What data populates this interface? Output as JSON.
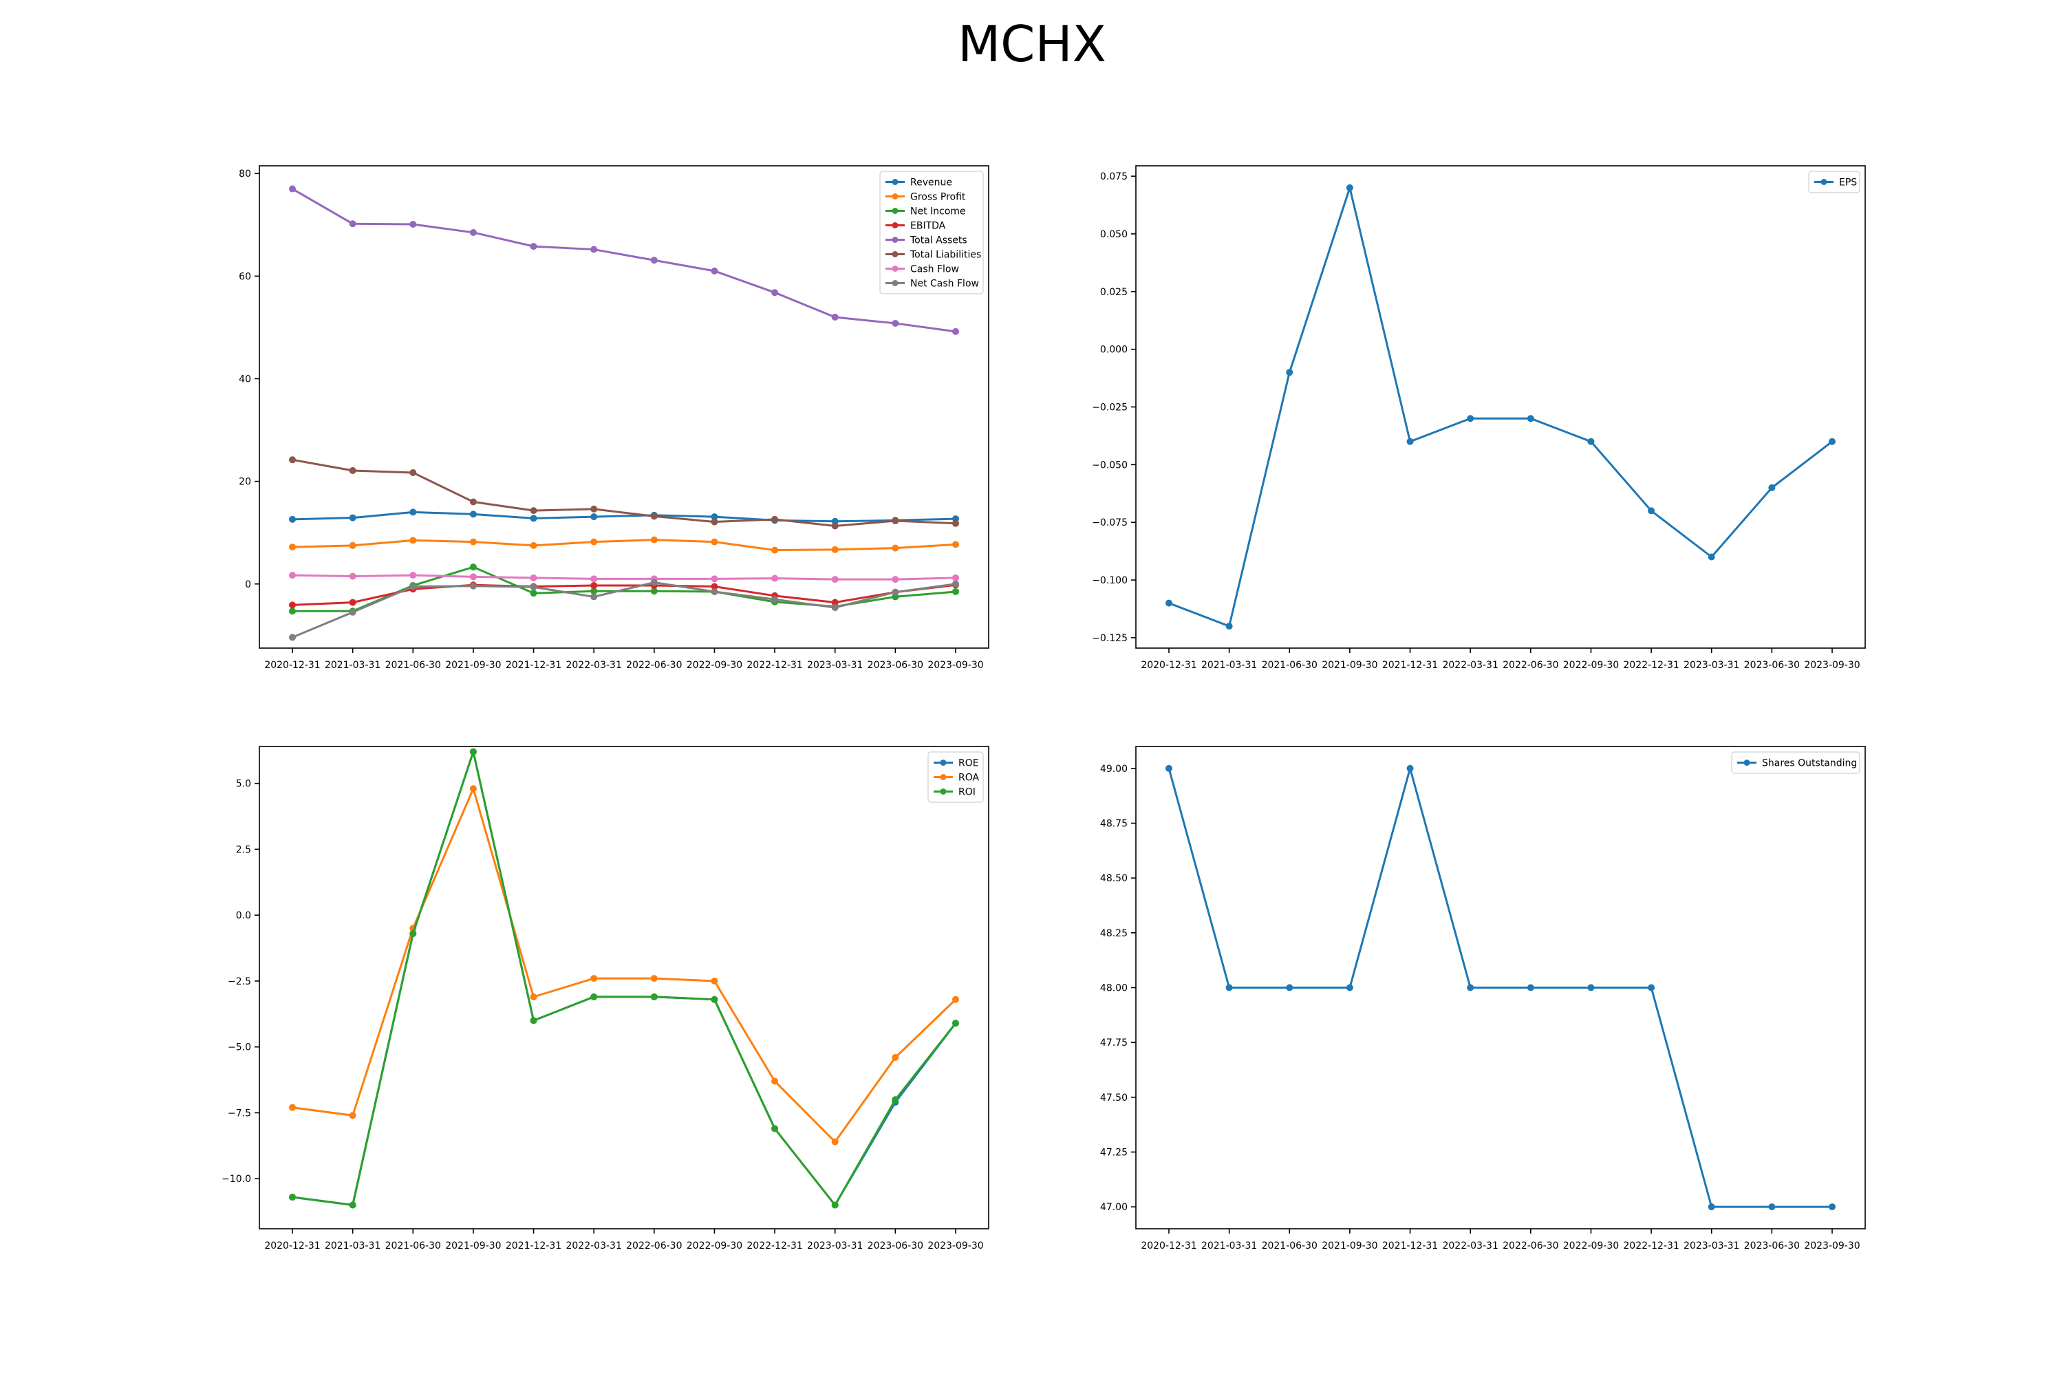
{
  "title": "MCHX",
  "colors": {
    "blue": "#1f77b4",
    "orange": "#ff7f0e",
    "green": "#2ca02c",
    "red": "#d62728",
    "purple": "#9467bd",
    "brown": "#8c564b",
    "pink": "#e377c2",
    "gray": "#7f7f7f"
  },
  "chart_data": [
    {
      "type": "line",
      "title": "",
      "xlabel": "",
      "ylabel": "",
      "legend_position": "top-right",
      "ylim": [
        -12.5,
        81.5
      ],
      "yticks": [
        0,
        20,
        40,
        60,
        80
      ],
      "categories": [
        "2020-12-31",
        "2021-03-31",
        "2021-06-30",
        "2021-09-30",
        "2021-12-31",
        "2022-03-31",
        "2022-06-30",
        "2022-09-30",
        "2022-12-31",
        "2023-03-31",
        "2023-06-30",
        "2023-09-30"
      ],
      "series": [
        {
          "name": "Revenue",
          "color": "#1f77b4",
          "values": [
            12.6,
            12.9,
            14.0,
            13.6,
            12.8,
            13.1,
            13.4,
            13.1,
            12.4,
            12.2,
            12.4,
            12.7
          ]
        },
        {
          "name": "Gross Profit",
          "color": "#ff7f0e",
          "values": [
            7.2,
            7.5,
            8.5,
            8.2,
            7.5,
            8.2,
            8.6,
            8.2,
            6.6,
            6.7,
            7.0,
            7.7
          ]
        },
        {
          "name": "Net Income",
          "color": "#2ca02c",
          "values": [
            -5.3,
            -5.3,
            -0.3,
            3.3,
            -1.8,
            -1.4,
            -1.4,
            -1.5,
            -3.5,
            -4.4,
            -2.5,
            -1.5
          ]
        },
        {
          "name": "EBITDA",
          "color": "#d62728",
          "values": [
            -4.1,
            -3.6,
            -1.0,
            -0.2,
            -0.5,
            -0.3,
            -0.3,
            -0.5,
            -2.3,
            -3.6,
            -1.6,
            -0.2
          ]
        },
        {
          "name": "Total Assets",
          "color": "#9467bd",
          "values": [
            77.0,
            70.2,
            70.1,
            68.5,
            65.8,
            65.2,
            63.1,
            61.0,
            56.8,
            52.0,
            50.8,
            49.2
          ]
        },
        {
          "name": "Total Liabilities",
          "color": "#8c564b",
          "values": [
            24.2,
            22.1,
            21.7,
            16.0,
            14.3,
            14.6,
            13.2,
            12.1,
            12.6,
            11.3,
            12.3,
            11.8
          ]
        },
        {
          "name": "Cash Flow",
          "color": "#e377c2",
          "values": [
            1.7,
            1.5,
            1.7,
            1.4,
            1.2,
            1.0,
            1.0,
            1.0,
            1.1,
            0.9,
            0.9,
            1.2
          ]
        },
        {
          "name": "Net Cash Flow",
          "color": "#7f7f7f",
          "values": [
            -10.4,
            -5.5,
            -0.5,
            -0.4,
            -0.6,
            -2.5,
            0.3,
            -1.5,
            -3.0,
            -4.6,
            -1.6,
            0.0
          ]
        }
      ]
    },
    {
      "type": "line",
      "title": "",
      "xlabel": "",
      "ylabel": "",
      "legend_position": "top-right",
      "ylim": [
        -0.1295,
        0.0795
      ],
      "yticks": [
        -0.125,
        -0.1,
        -0.075,
        -0.05,
        -0.025,
        0.0,
        0.025,
        0.05,
        0.075
      ],
      "ytick_labels": [
        "−0.125",
        "−0.100",
        "−0.075",
        "−0.050",
        "−0.025",
        "0.000",
        "0.025",
        "0.050",
        "0.075"
      ],
      "categories": [
        "2020-12-31",
        "2021-03-31",
        "2021-06-30",
        "2021-09-30",
        "2021-12-31",
        "2022-03-31",
        "2022-06-30",
        "2022-09-30",
        "2022-12-31",
        "2023-03-31",
        "2023-06-30",
        "2023-09-30"
      ],
      "series": [
        {
          "name": "EPS",
          "color": "#1f77b4",
          "values": [
            -0.11,
            -0.12,
            -0.01,
            0.07,
            -0.04,
            -0.03,
            -0.03,
            -0.04,
            -0.07,
            -0.09,
            -0.06,
            -0.04
          ]
        }
      ]
    },
    {
      "type": "line",
      "title": "",
      "xlabel": "",
      "ylabel": "",
      "legend_position": "top-right",
      "ylim": [
        -11.9,
        6.4
      ],
      "yticks": [
        -10.0,
        -7.5,
        -5.0,
        -2.5,
        0.0,
        2.5,
        5.0
      ],
      "ytick_labels": [
        "−10.0",
        "−7.5",
        "−5.0",
        "−2.5",
        "0.0",
        "2.5",
        "5.0"
      ],
      "categories": [
        "2020-12-31",
        "2021-03-31",
        "2021-06-30",
        "2021-09-30",
        "2021-12-31",
        "2022-03-31",
        "2022-06-30",
        "2022-09-30",
        "2022-12-31",
        "2023-03-31",
        "2023-06-30",
        "2023-09-30"
      ],
      "series": [
        {
          "name": "ROE",
          "color": "#1f77b4",
          "values": [
            -10.7,
            -11.0,
            -0.7,
            6.2,
            -4.0,
            -3.1,
            -3.1,
            -3.2,
            -8.1,
            -11.0,
            -7.1,
            -4.1
          ]
        },
        {
          "name": "ROA",
          "color": "#ff7f0e",
          "values": [
            -7.3,
            -7.6,
            -0.5,
            4.8,
            -3.1,
            -2.4,
            -2.4,
            -2.5,
            -6.3,
            -8.6,
            -5.4,
            -3.2
          ]
        },
        {
          "name": "ROI",
          "color": "#2ca02c",
          "values": [
            -10.7,
            -11.0,
            -0.7,
            6.2,
            -4.0,
            -3.1,
            -3.1,
            -3.2,
            -8.1,
            -11.0,
            -7.0,
            -4.1
          ]
        }
      ]
    },
    {
      "type": "line",
      "title": "",
      "xlabel": "",
      "ylabel": "",
      "legend_position": "top-right",
      "ylim": [
        46.9,
        49.1
      ],
      "yticks": [
        47.0,
        47.25,
        47.5,
        47.75,
        48.0,
        48.25,
        48.5,
        48.75,
        49.0
      ],
      "ytick_labels": [
        "47.00",
        "47.25",
        "47.50",
        "47.75",
        "48.00",
        "48.25",
        "48.50",
        "48.75",
        "49.00"
      ],
      "categories": [
        "2020-12-31",
        "2021-03-31",
        "2021-06-30",
        "2021-09-30",
        "2021-12-31",
        "2022-03-31",
        "2022-06-30",
        "2022-09-30",
        "2022-12-31",
        "2023-03-31",
        "2023-06-30",
        "2023-09-30"
      ],
      "series": [
        {
          "name": "Shares Outstanding",
          "color": "#1f77b4",
          "values": [
            49.0,
            48.0,
            48.0,
            48.0,
            49.0,
            48.0,
            48.0,
            48.0,
            48.0,
            47.0,
            47.0,
            47.0
          ]
        }
      ]
    }
  ]
}
